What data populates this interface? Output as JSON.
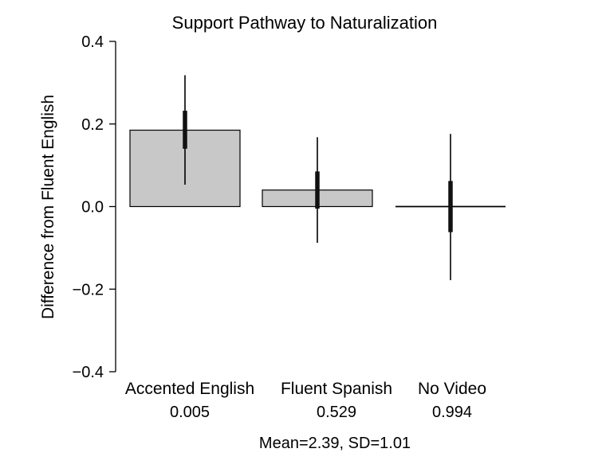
{
  "chart_data": {
    "type": "bar",
    "title": "Support Pathway to Naturalization",
    "xlabel": "",
    "ylabel": "Difference from Fluent English",
    "ylim": [
      -0.4,
      0.4
    ],
    "yticks": [
      {
        "value": 0.4,
        "label": "0.4"
      },
      {
        "value": 0.2,
        "label": "0.2"
      },
      {
        "value": 0.0,
        "label": "0.0"
      },
      {
        "value": -0.2,
        "label": "−0.2"
      },
      {
        "value": -0.4,
        "label": "−0.4"
      }
    ],
    "categories": [
      "Accented English",
      "Fluent Spanish",
      "No Video"
    ],
    "values": [
      0.185,
      0.04,
      0.0
    ],
    "ci_inner": [
      [
        0.14,
        0.232
      ],
      [
        -0.005,
        0.085
      ],
      [
        -0.062,
        0.062
      ]
    ],
    "ci_outer": [
      [
        0.053,
        0.318
      ],
      [
        -0.088,
        0.168
      ],
      [
        -0.178,
        0.176
      ]
    ],
    "category_notes": [
      "0.005",
      "0.529",
      "0.994"
    ],
    "note": "Mean=2.39, SD=1.01",
    "bar_color": "#c8c8c8",
    "grid": false,
    "legend": "none"
  }
}
